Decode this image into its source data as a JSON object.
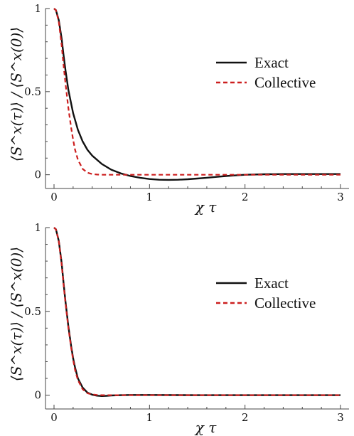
{
  "chart_data": [
    {
      "type": "line",
      "title": "",
      "xlabel": "χ τ",
      "ylabel": "⟨S^x(τ)⟩ / ⟨S^x(0)⟩",
      "xlim": [
        0,
        3
      ],
      "ylim": [
        -0.04,
        1.0
      ],
      "xticks": [
        0,
        1,
        2,
        3
      ],
      "yticks": [
        0,
        0.5,
        1
      ],
      "ytick_labels": [
        "0",
        "0.5",
        "1"
      ],
      "legend": "center-right",
      "grid": false,
      "series": [
        {
          "name": "Exact",
          "color": "#111111",
          "style": "solid",
          "x": [
            0,
            0.02,
            0.05,
            0.08,
            0.1,
            0.12,
            0.15,
            0.2,
            0.25,
            0.3,
            0.35,
            0.4,
            0.5,
            0.6,
            0.7,
            0.8,
            0.9,
            1.0,
            1.1,
            1.2,
            1.3,
            1.4,
            1.5,
            1.6,
            1.7,
            1.8,
            1.9,
            2.0,
            2.2,
            2.4,
            2.6,
            2.8,
            3.0
          ],
          "y": [
            1.0,
            0.99,
            0.93,
            0.82,
            0.72,
            0.63,
            0.51,
            0.37,
            0.27,
            0.2,
            0.15,
            0.115,
            0.065,
            0.03,
            0.008,
            -0.008,
            -0.018,
            -0.026,
            -0.03,
            -0.031,
            -0.03,
            -0.027,
            -0.023,
            -0.018,
            -0.013,
            -0.008,
            -0.004,
            0.0,
            0.003,
            0.004,
            0.004,
            0.004,
            0.004
          ]
        },
        {
          "name": "Collective",
          "color": "#cc1f1f",
          "style": "dashed",
          "x": [
            0,
            0.02,
            0.05,
            0.08,
            0.1,
            0.12,
            0.15,
            0.18,
            0.2,
            0.22,
            0.25,
            0.3,
            0.35,
            0.4,
            0.45,
            0.5,
            0.6,
            0.8,
            1.0,
            1.5,
            2.0,
            2.5,
            3.0
          ],
          "y": [
            1.0,
            0.99,
            0.92,
            0.78,
            0.66,
            0.55,
            0.4,
            0.28,
            0.21,
            0.15,
            0.09,
            0.035,
            0.012,
            0.004,
            0.001,
            0.0,
            0.0,
            0.0,
            0.0,
            0.0,
            0.0,
            0.0,
            0.0
          ]
        }
      ]
    },
    {
      "type": "line",
      "title": "",
      "xlabel": "χ τ",
      "ylabel": "⟨S^x(τ)⟩ / ⟨S^x(0)⟩",
      "xlim": [
        0,
        3
      ],
      "ylim": [
        -0.04,
        1.0
      ],
      "xticks": [
        0,
        1,
        2,
        3
      ],
      "yticks": [
        0,
        0.5,
        1
      ],
      "ytick_labels": [
        "0",
        "0.5",
        "1"
      ],
      "legend": "center-right",
      "grid": false,
      "series": [
        {
          "name": "Exact",
          "color": "#111111",
          "style": "solid",
          "x": [
            0,
            0.02,
            0.05,
            0.08,
            0.1,
            0.12,
            0.15,
            0.18,
            0.2,
            0.22,
            0.25,
            0.3,
            0.35,
            0.4,
            0.45,
            0.5,
            0.55,
            0.6,
            0.7,
            0.8,
            1.0,
            1.5,
            2.0,
            2.5,
            3.0
          ],
          "y": [
            1.0,
            0.99,
            0.92,
            0.79,
            0.67,
            0.56,
            0.41,
            0.29,
            0.22,
            0.165,
            0.1,
            0.045,
            0.015,
            0.003,
            -0.003,
            -0.005,
            -0.004,
            -0.002,
            0.0,
            0.001,
            0.001,
            0.0,
            0.0,
            0.0,
            0.0
          ]
        },
        {
          "name": "Collective",
          "color": "#cc1f1f",
          "style": "dashed",
          "x": [
            0,
            0.02,
            0.05,
            0.08,
            0.1,
            0.12,
            0.15,
            0.18,
            0.2,
            0.22,
            0.25,
            0.3,
            0.35,
            0.4,
            0.45,
            0.5,
            0.6,
            0.8,
            1.0,
            1.5,
            2.0,
            2.5,
            3.0
          ],
          "y": [
            1.0,
            0.99,
            0.92,
            0.78,
            0.66,
            0.55,
            0.4,
            0.28,
            0.21,
            0.15,
            0.09,
            0.035,
            0.012,
            0.004,
            0.001,
            0.0,
            0.0,
            0.0,
            0.0,
            0.0,
            0.0,
            0.0,
            0.0
          ]
        }
      ]
    }
  ]
}
